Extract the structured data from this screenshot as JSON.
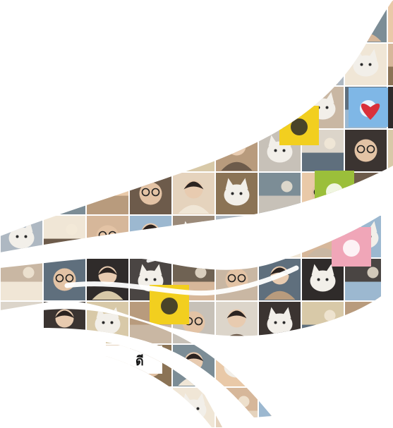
{
  "image": {
    "kind": "photo-mosaic",
    "background": "#ffffff",
    "shape": "bird-wing",
    "visible_text": [
      "ดี"
    ],
    "palette": {
      "tile_tones": [
        "#6d5b4b",
        "#9b8a79",
        "#c9b7a3",
        "#3b3431",
        "#e5d3bd",
        "#aeb8c2",
        "#5f6f7d",
        "#d8c9a8",
        "#8b7355",
        "#f0e6d6",
        "#2f2b2a",
        "#b89b7d",
        "#7c8d96",
        "#d6b79a",
        "#4a4543",
        "#c7c1b8",
        "#e9c9a8",
        "#9cb8d0",
        "#6f6253",
        "#dcd5ca"
      ],
      "accents": {
        "yellow": "#f2cf1f",
        "red": "#d9303b",
        "green": "#9bbf3a",
        "sky": "#7fb7e6",
        "pink": "#f0a6b8"
      }
    }
  }
}
